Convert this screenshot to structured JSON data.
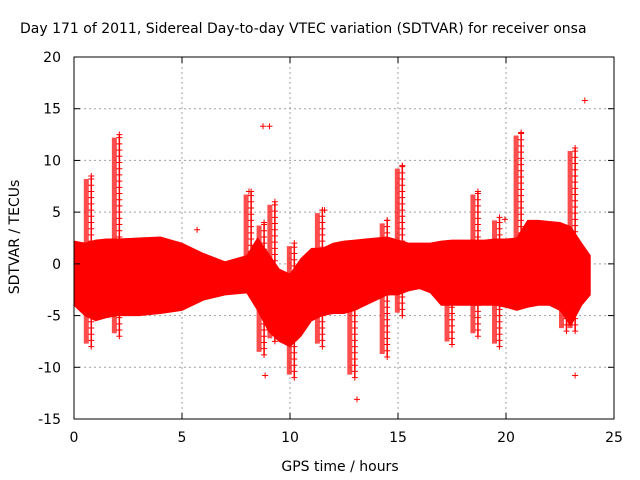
{
  "chart_data": {
    "type": "scatter",
    "title": "Day 171 of 2011, Sidereal Day-to-day VTEC variation (SDTVAR) for receiver onsa",
    "xlabel": "GPS time / hours",
    "ylabel": "SDTVAR / TECUs",
    "xlim": [
      0,
      25
    ],
    "ylim": [
      -15,
      20
    ],
    "xticks": [
      0,
      5,
      10,
      15,
      20,
      25
    ],
    "yticks": [
      -15,
      -10,
      -5,
      0,
      5,
      10,
      15,
      20
    ],
    "grid": true,
    "marker": "+",
    "color": "#ff0000",
    "band": {
      "x": [
        0,
        0.5,
        1,
        1.5,
        2,
        3,
        4,
        5,
        6,
        7,
        8,
        8.5,
        9,
        9.5,
        10,
        10.5,
        11,
        11.5,
        12,
        12.5,
        13,
        13.5,
        14,
        14.5,
        15,
        15.5,
        16,
        16.5,
        17,
        17.5,
        18,
        18.5,
        19,
        19.5,
        20,
        20.5,
        21,
        21.5,
        22,
        22.5,
        23,
        23.5,
        23.9
      ],
      "upper": [
        2.2,
        2.0,
        2.3,
        2.4,
        2.4,
        2.5,
        2.6,
        2.0,
        1.0,
        0.2,
        0.8,
        2.5,
        1.0,
        -0.5,
        -1.0,
        0.5,
        1.5,
        1.5,
        2.0,
        2.2,
        2.3,
        2.4,
        2.5,
        2.6,
        2.3,
        2.0,
        2.0,
        2.0,
        2.2,
        2.3,
        2.3,
        2.3,
        2.3,
        2.4,
        2.4,
        2.5,
        4.2,
        4.2,
        4.1,
        4.0,
        3.6,
        2.0,
        0.8
      ],
      "lower": [
        -4.0,
        -5.0,
        -5.5,
        -5.2,
        -5.0,
        -5.0,
        -4.8,
        -4.5,
        -3.5,
        -3.0,
        -2.8,
        -4.5,
        -6.5,
        -7.5,
        -8.0,
        -7.0,
        -5.5,
        -5.0,
        -4.8,
        -4.8,
        -4.5,
        -4.0,
        -3.5,
        -3.0,
        -3.0,
        -2.6,
        -2.4,
        -2.8,
        -4.0,
        -4.0,
        -4.0,
        -4.0,
        -4.0,
        -4.0,
        -4.2,
        -4.5,
        -4.2,
        -4.0,
        -4.0,
        -4.5,
        -6.0,
        -4.0,
        -3.0
      ]
    },
    "spikes": [
      {
        "x": 0.8,
        "min": -8.0,
        "max": 8.5
      },
      {
        "x": 2.1,
        "min": -7.0,
        "max": 12.5
      },
      {
        "x": 8.2,
        "min": 0.0,
        "max": 7.0
      },
      {
        "x": 8.8,
        "min": -8.8,
        "max": 4.0
      },
      {
        "x": 9.3,
        "min": -7.5,
        "max": 6.0
      },
      {
        "x": 10.2,
        "min": -11.0,
        "max": 2.0
      },
      {
        "x": 11.5,
        "min": -8.0,
        "max": 5.2
      },
      {
        "x": 13.0,
        "min": -11.0,
        "max": 1.8
      },
      {
        "x": 14.5,
        "min": -9.0,
        "max": 4.2
      },
      {
        "x": 15.2,
        "min": -5.0,
        "max": 9.5
      },
      {
        "x": 17.5,
        "min": -7.8,
        "max": 2.0
      },
      {
        "x": 18.7,
        "min": -7.0,
        "max": 7.0
      },
      {
        "x": 19.7,
        "min": -8.0,
        "max": 4.5
      },
      {
        "x": 20.7,
        "min": -3.0,
        "max": 12.7
      },
      {
        "x": 22.8,
        "min": -6.5,
        "max": 2.0
      },
      {
        "x": 23.2,
        "min": -6.5,
        "max": 11.2
      },
      {
        "x": 23.6,
        "min": -3.0,
        "max": 0.8
      }
    ],
    "outliers": [
      {
        "x": 5.7,
        "y": 3.3
      },
      {
        "x": 8.1,
        "y": 7.0
      },
      {
        "x": 8.75,
        "y": 13.3
      },
      {
        "x": 9.05,
        "y": 13.3
      },
      {
        "x": 8.85,
        "y": -10.8
      },
      {
        "x": 13.1,
        "y": -13.1
      },
      {
        "x": 23.2,
        "y": -10.8
      },
      {
        "x": 23.65,
        "y": 15.8
      },
      {
        "x": 19.95,
        "y": 4.3
      },
      {
        "x": 11.6,
        "y": 5.2
      }
    ]
  }
}
